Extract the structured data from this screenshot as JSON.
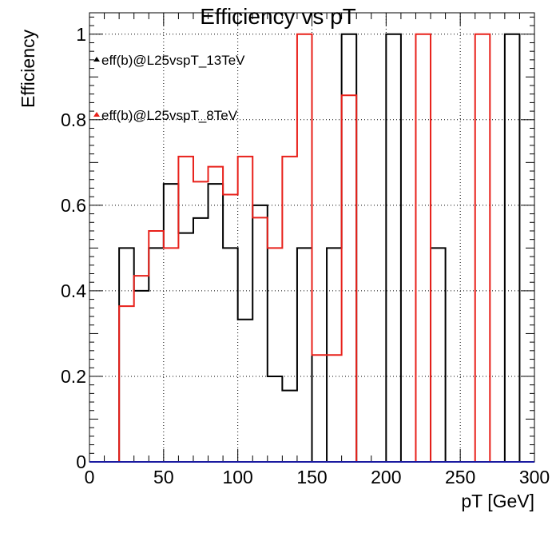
{
  "chart_data": {
    "type": "histogram",
    "title": "Efficiency vs pT",
    "xlabel": "pT [GeV]",
    "ylabel": "Efficiency",
    "xlim": [
      0,
      300
    ],
    "ylim": [
      0,
      1.05
    ],
    "x_ticks": [
      0,
      50,
      100,
      150,
      200,
      250,
      300
    ],
    "x_tick_labels": [
      "0",
      "50",
      "100",
      "150",
      "200",
      "250",
      "300"
    ],
    "y_ticks": [
      0,
      0.2,
      0.4,
      0.6,
      0.8,
      1
    ],
    "y_tick_labels": [
      "0",
      "0.2",
      "0.4",
      "0.6",
      "0.8",
      "1"
    ],
    "grid": true,
    "legend_position": "top-left",
    "bin_edges": [
      0,
      10,
      20,
      30,
      40,
      50,
      60,
      70,
      80,
      90,
      100,
      110,
      120,
      130,
      140,
      150,
      160,
      170,
      180,
      190,
      200,
      210,
      220,
      230,
      240,
      250,
      260,
      270,
      280,
      290,
      300
    ],
    "series": [
      {
        "name": "eff(b)@L25vspT_13TeV",
        "color": "#000000",
        "values": [
          0,
          0,
          0.5,
          0.4,
          0.5,
          0.65,
          0.535,
          0.57,
          0.65,
          0.5,
          0.333,
          0.6,
          0.2,
          0.167,
          0.5,
          0,
          0.5,
          1,
          0,
          0,
          1,
          0,
          0,
          0.5,
          0,
          0,
          0,
          0,
          1,
          0
        ]
      },
      {
        "name": "eff(b)@L25vspT_8TeV",
        "color": "#e8201a",
        "values": [
          0,
          0,
          0.364,
          0.435,
          0.54,
          0.5,
          0.714,
          0.655,
          0.69,
          0.625,
          0.714,
          0.571,
          0.5,
          0.714,
          1,
          0.25,
          0.25,
          0.857,
          0,
          0,
          0,
          0,
          1,
          0,
          0,
          0,
          1,
          0,
          0,
          0
        ]
      }
    ]
  }
}
